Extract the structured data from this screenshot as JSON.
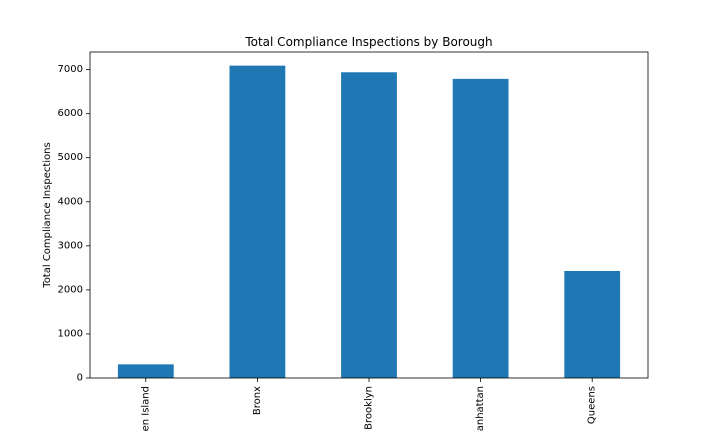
{
  "chart_data": {
    "type": "bar",
    "title": "Total Compliance Inspections by Borough",
    "xlabel": "",
    "ylabel": "Total Compliance Inspections",
    "categories": [
      "en Island",
      "Bronx",
      "Brooklyn",
      "anhattan",
      "Queens"
    ],
    "values": [
      310,
      7090,
      6940,
      6790,
      2430
    ],
    "ylim": [
      0,
      7400
    ],
    "yticks": [
      0,
      1000,
      2000,
      3000,
      4000,
      5000,
      6000,
      7000
    ],
    "ytick_labels": [
      "0",
      "1000",
      "2000",
      "3000",
      "4000",
      "5000",
      "6000",
      "7000"
    ],
    "grid": false,
    "legend": "none",
    "colors": {
      "bar": "#1f77b4",
      "axis": "#000000",
      "background": "#ffffff"
    }
  }
}
